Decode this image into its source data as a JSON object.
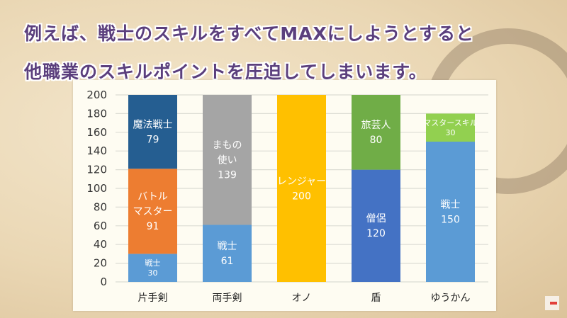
{
  "slide": {
    "title_line1": "例えば、戦士のスキルをすべてMAXにしようとすると",
    "title_line2": "他職業のスキルポイントを圧迫してしまいます。"
  },
  "chart_data": {
    "type": "bar",
    "stacked": true,
    "title": "",
    "xlabel": "",
    "ylabel": "",
    "ylim": [
      0,
      200
    ],
    "yticks": [
      0,
      20,
      40,
      60,
      80,
      100,
      120,
      140,
      160,
      180,
      200
    ],
    "grid": true,
    "legend": "none",
    "categories": [
      "片手剣",
      "両手剣",
      "オノ",
      "盾",
      "ゆうかん"
    ],
    "stacks": [
      [
        {
          "name": "戦士",
          "value": 30,
          "color": "#5b9bd5"
        },
        {
          "name": "バトルマスター",
          "value": 91,
          "color": "#ed7d31"
        },
        {
          "name": "魔法戦士",
          "value": 79,
          "color": "#255e91"
        }
      ],
      [
        {
          "name": "戦士",
          "value": 61,
          "color": "#5b9bd5"
        },
        {
          "name": "まもの使い",
          "value": 139,
          "color": "#a5a5a5"
        }
      ],
      [
        {
          "name": "レンジャー",
          "value": 200,
          "color": "#ffc000"
        }
      ],
      [
        {
          "name": "僧侶",
          "value": 120,
          "color": "#4472c4"
        },
        {
          "name": "旅芸人",
          "value": 80,
          "color": "#70ad47"
        }
      ],
      [
        {
          "name": "戦士",
          "value": 150,
          "color": "#5b9bd5"
        },
        {
          "name": "マスタースキル",
          "value": 30,
          "color": "#92d050"
        }
      ]
    ],
    "label_lines": {
      "バトルマスター": [
        "バトル",
        "マスター"
      ],
      "まもの使い": [
        "まもの",
        "使い"
      ]
    }
  }
}
